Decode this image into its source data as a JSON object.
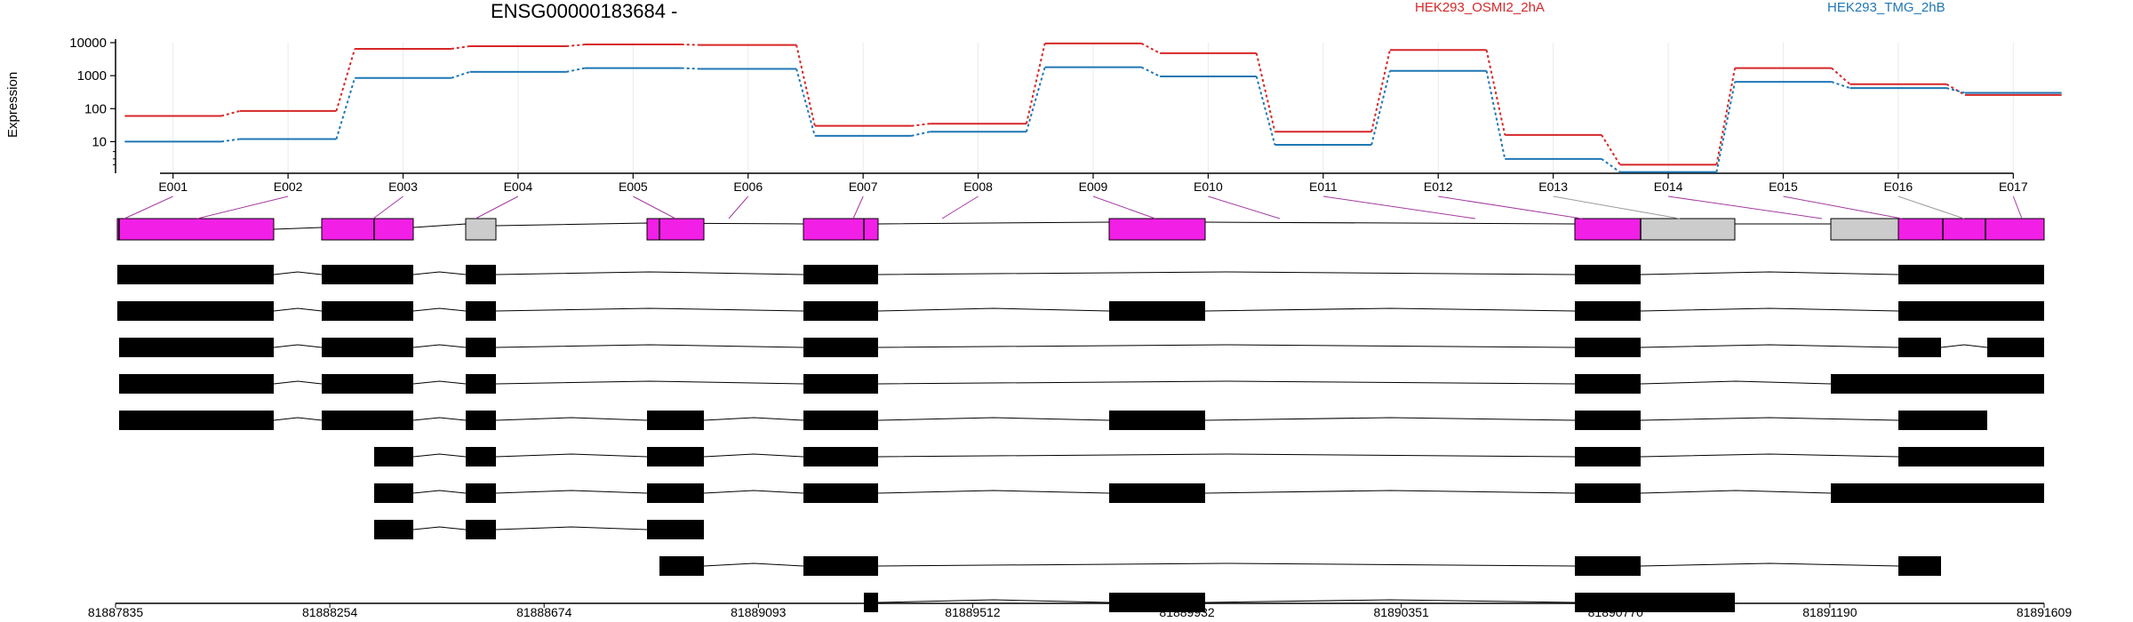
{
  "title": "ENSG00000183684 -",
  "ylabel": "Expression",
  "chart_data": {
    "type": "line",
    "title": "ENSG00000183684 -",
    "ylabel": "Expression",
    "yscale": "log",
    "yticks": [
      "10",
      "100",
      "1000",
      "10000"
    ],
    "ylim": [
      1.1,
      10000
    ],
    "grid": true,
    "legend_placement": "top",
    "exons": [
      "E001",
      "E002",
      "E003",
      "E004",
      "E005",
      "E006",
      "E007",
      "E008",
      "E009",
      "E010",
      "E011",
      "E012",
      "E013",
      "E014",
      "E015",
      "E016",
      "E017"
    ],
    "series": [
      {
        "name": "HEK293_OSMI2_2hA",
        "color": "#d62728",
        "values": [
          60,
          85,
          6500,
          7800,
          8800,
          8500,
          30,
          35,
          9500,
          4800,
          20,
          6000,
          16,
          2,
          1700,
          550,
          260
        ]
      },
      {
        "name": "HEK293_TMG_2hB",
        "color": "#1f77b4",
        "values": [
          10,
          12,
          850,
          1300,
          1700,
          1600,
          15,
          20,
          1800,
          950,
          8,
          1400,
          3,
          1.2,
          650,
          420,
          300
        ]
      }
    ],
    "genome_ticks": [
      "81887835",
      "81888254",
      "81888674",
      "81889093",
      "81889512",
      "81889932",
      "81890351",
      "81890770",
      "81891190",
      "81891609"
    ]
  }
}
